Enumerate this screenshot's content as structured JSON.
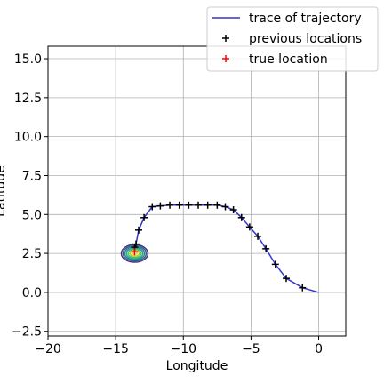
{
  "chart_data": {
    "type": "line",
    "title": "",
    "xlabel": "Longitude",
    "ylabel": "Latitude",
    "xlim": [
      -20,
      2
    ],
    "ylim": [
      -2.8,
      15.8
    ],
    "xticks": [
      -20,
      -15,
      -10,
      -5,
      0
    ],
    "xtick_labels": [
      "−20",
      "−15",
      "−10",
      "−5",
      "0"
    ],
    "yticks": [
      -2.5,
      0.0,
      2.5,
      5.0,
      7.5,
      10.0,
      12.5,
      15.0
    ],
    "ytick_labels": [
      "−2.5",
      "0.0",
      "2.5",
      "5.0",
      "7.5",
      "10.0",
      "12.5",
      "15.0"
    ],
    "grid": true,
    "legend_position": "top-right",
    "series": [
      {
        "name": "trace of trajectory",
        "kind": "line",
        "color": "#3333cc",
        "x": [
          0.0,
          -1.2,
          -2.4,
          -3.2,
          -3.9,
          -4.5,
          -5.1,
          -5.7,
          -6.3,
          -6.9,
          -7.5,
          -8.2,
          -8.9,
          -9.6,
          -10.3,
          -11.0,
          -11.7,
          -12.3,
          -12.9,
          -13.3,
          -13.5,
          -13.6
        ],
        "y": [
          0.0,
          0.3,
          0.9,
          1.8,
          2.8,
          3.6,
          4.2,
          4.8,
          5.3,
          5.5,
          5.6,
          5.6,
          5.6,
          5.6,
          5.6,
          5.6,
          5.55,
          5.5,
          4.8,
          4.0,
          3.1,
          2.9
        ]
      },
      {
        "name": "previous locations",
        "kind": "marker",
        "color": "#000000",
        "x": [
          -1.2,
          -2.4,
          -3.2,
          -3.9,
          -4.5,
          -5.1,
          -5.7,
          -6.3,
          -6.9,
          -7.5,
          -8.2,
          -8.9,
          -9.6,
          -10.3,
          -11.0,
          -11.7,
          -12.3,
          -12.9,
          -13.3,
          -13.5,
          -13.6
        ],
        "y": [
          0.3,
          0.9,
          1.8,
          2.8,
          3.6,
          4.2,
          4.8,
          5.3,
          5.5,
          5.6,
          5.6,
          5.6,
          5.6,
          5.6,
          5.6,
          5.55,
          5.5,
          4.8,
          4.0,
          3.1,
          2.9
        ]
      },
      {
        "name": "true location",
        "kind": "marker",
        "color": "#ff0000",
        "x": [
          -13.6
        ],
        "y": [
          2.6
        ]
      }
    ],
    "contour": {
      "center_x": -13.6,
      "center_y": 2.5,
      "colors": [
        "#46327e",
        "#365c8d",
        "#277f8e",
        "#1fa187",
        "#4ac16d",
        "#a0da39",
        "#fde725"
      ]
    }
  }
}
